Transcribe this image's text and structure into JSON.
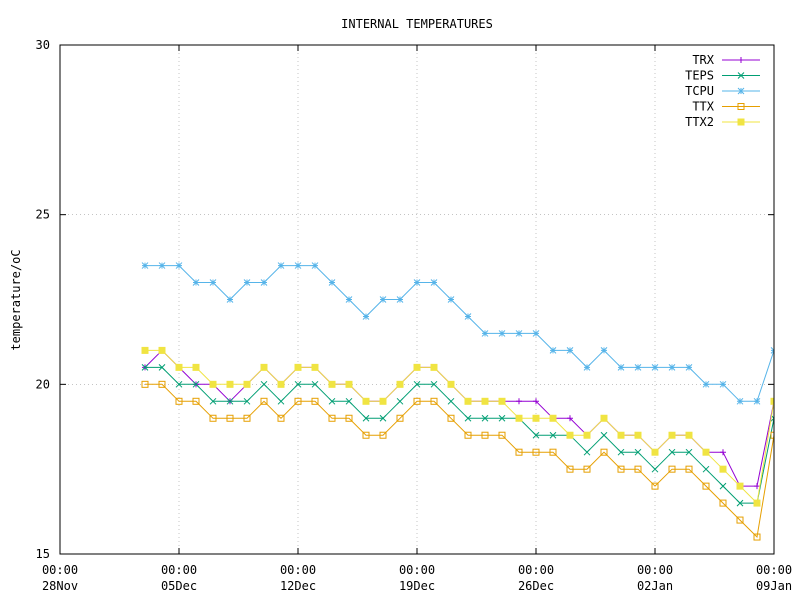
{
  "chart_data": {
    "type": "line",
    "title": "INTERNAL TEMPERATURES",
    "xlabel": "",
    "ylabel": "temperature/oC",
    "ylim": [
      15,
      30
    ],
    "yticks": [
      15,
      20,
      25,
      30
    ],
    "xlim": [
      "2018-11-28 00:00",
      "2019-01-09 00:00"
    ],
    "xticks": [
      {
        "time": "00:00",
        "date": "28Nov"
      },
      {
        "time": "00:00",
        "date": "05Dec"
      },
      {
        "time": "00:00",
        "date": "12Dec"
      },
      {
        "time": "00:00",
        "date": "19Dec"
      },
      {
        "time": "00:00",
        "date": "26Dec"
      },
      {
        "time": "00:00",
        "date": "02Jan"
      },
      {
        "time": "00:00",
        "date": "09Jan"
      }
    ],
    "grid": true,
    "legend_position": "top-right",
    "x": [
      "03Dec",
      "04Dec",
      "05Dec",
      "06Dec",
      "07Dec",
      "08Dec",
      "09Dec",
      "10Dec",
      "11Dec",
      "12Dec",
      "13Dec",
      "14Dec",
      "15Dec",
      "16Dec",
      "17Dec",
      "18Dec",
      "19Dec",
      "20Dec",
      "21Dec",
      "22Dec",
      "23Dec",
      "24Dec",
      "25Dec",
      "26Dec",
      "27Dec",
      "28Dec",
      "29Dec",
      "30Dec",
      "31Dec",
      "01Jan",
      "02Jan",
      "03Jan",
      "04Jan",
      "05Jan",
      "06Jan",
      "07Jan",
      "08Jan",
      "09Jan"
    ],
    "series": [
      {
        "name": "TRX",
        "color": "#9400d3",
        "marker": "plus",
        "values": [
          20.5,
          21.0,
          20.5,
          20.0,
          20.0,
          19.5,
          20.0,
          20.5,
          20.0,
          20.5,
          20.5,
          20.0,
          20.0,
          19.5,
          19.5,
          20.0,
          20.5,
          20.5,
          20.0,
          19.5,
          19.5,
          19.5,
          19.5,
          19.5,
          19.0,
          19.0,
          18.5,
          19.0,
          18.5,
          18.5,
          18.0,
          18.5,
          18.5,
          18.0,
          18.0,
          17.0,
          17.0,
          19.5
        ]
      },
      {
        "name": "TEPS",
        "color": "#009e73",
        "marker": "cross",
        "values": [
          20.5,
          20.5,
          20.0,
          20.0,
          19.5,
          19.5,
          19.5,
          20.0,
          19.5,
          20.0,
          20.0,
          19.5,
          19.5,
          19.0,
          19.0,
          19.5,
          20.0,
          20.0,
          19.5,
          19.0,
          19.0,
          19.0,
          19.0,
          18.5,
          18.5,
          18.5,
          18.0,
          18.5,
          18.0,
          18.0,
          17.5,
          18.0,
          18.0,
          17.5,
          17.0,
          16.5,
          16.5,
          19.0
        ]
      },
      {
        "name": "TCPU",
        "color": "#56b4e9",
        "marker": "star",
        "values": [
          23.5,
          23.5,
          23.5,
          23.0,
          23.0,
          22.5,
          23.0,
          23.0,
          23.5,
          23.5,
          23.5,
          23.0,
          22.5,
          22.0,
          22.5,
          22.5,
          23.0,
          23.0,
          22.5,
          22.0,
          21.5,
          21.5,
          21.5,
          21.5,
          21.0,
          21.0,
          20.5,
          21.0,
          20.5,
          20.5,
          20.5,
          20.5,
          20.5,
          20.0,
          20.0,
          19.5,
          19.5,
          21.0
        ]
      },
      {
        "name": "TTX",
        "color": "#e69f00",
        "marker": "square-open",
        "values": [
          20.0,
          20.0,
          19.5,
          19.5,
          19.0,
          19.0,
          19.0,
          19.5,
          19.0,
          19.5,
          19.5,
          19.0,
          19.0,
          18.5,
          18.5,
          19.0,
          19.5,
          19.5,
          19.0,
          18.5,
          18.5,
          18.5,
          18.0,
          18.0,
          18.0,
          17.5,
          17.5,
          18.0,
          17.5,
          17.5,
          17.0,
          17.5,
          17.5,
          17.0,
          16.5,
          16.0,
          15.5,
          18.5
        ]
      },
      {
        "name": "TTX2",
        "color": "#f0e442",
        "marker": "square-filled",
        "values": [
          21.0,
          21.0,
          20.5,
          20.5,
          20.0,
          20.0,
          20.0,
          20.5,
          20.0,
          20.5,
          20.5,
          20.0,
          20.0,
          19.5,
          19.5,
          20.0,
          20.5,
          20.5,
          20.0,
          19.5,
          19.5,
          19.5,
          19.0,
          19.0,
          19.0,
          18.5,
          18.5,
          19.0,
          18.5,
          18.5,
          18.0,
          18.5,
          18.5,
          18.0,
          17.5,
          17.0,
          16.5,
          19.5
        ]
      }
    ]
  }
}
